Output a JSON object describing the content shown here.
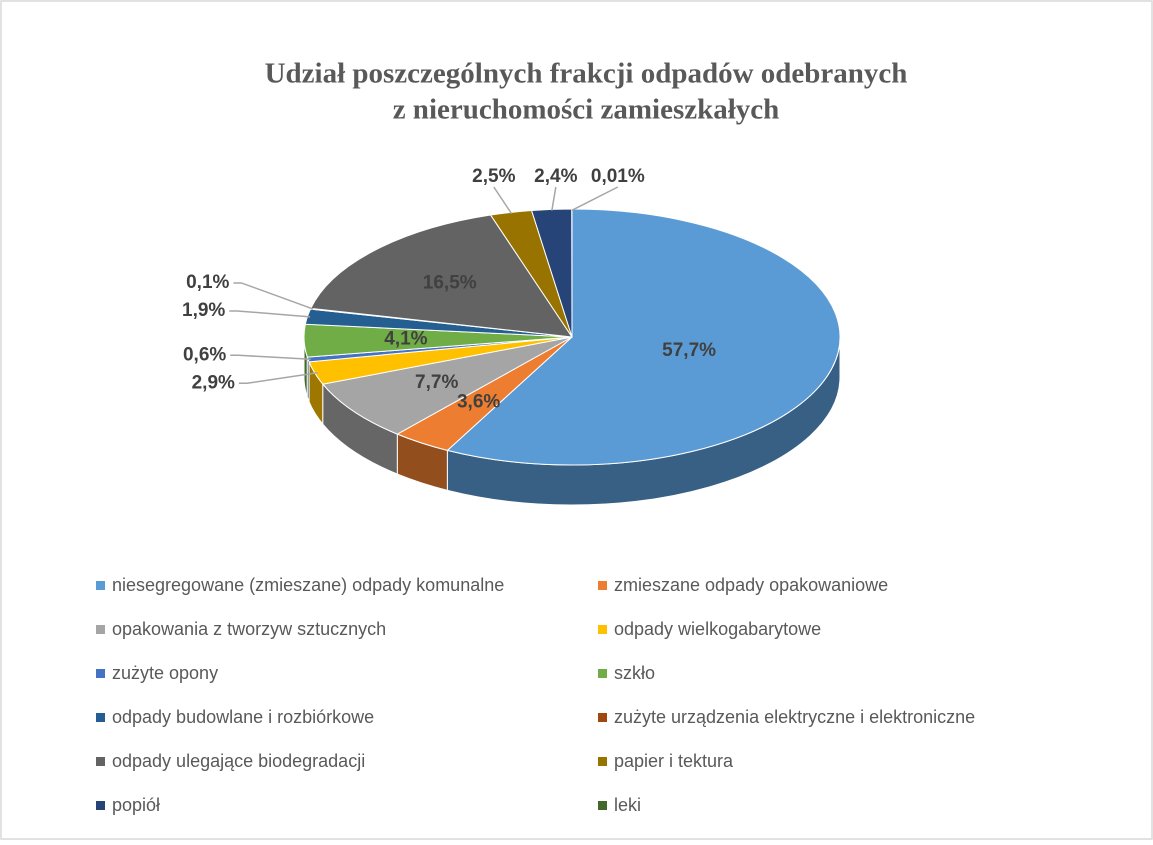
{
  "chart_data": {
    "type": "pie",
    "title": [
      "Udział poszczególnych frakcji odpadów odebranych",
      "z nieruchomości zamieszkałych"
    ],
    "categories": [
      "niesegregowane (zmieszane) odpady komunalne",
      "zmieszane odpady opakowaniowe",
      "opakowania z tworzyw sztucznych",
      "odpady wielkogabarytowe",
      "zużyte opony",
      "szkło",
      "odpady budowlane i rozbiórkowe",
      "zużyte urządzenia elektryczne i elektroniczne",
      "odpady ulegające biodegradacji",
      "papier i tektura",
      "popiół",
      "leki"
    ],
    "values": [
      57.7,
      3.6,
      7.7,
      2.9,
      0.6,
      4.1,
      1.9,
      0.1,
      16.5,
      2.5,
      2.4,
      0.01
    ],
    "value_labels": [
      "57,7%",
      "3,6%",
      "7,7%",
      "2,9%",
      "0,6%",
      "4,1%",
      "1,9%",
      "0,1%",
      "16,5%",
      "2,5%",
      "2,4%",
      "0,01%"
    ],
    "colors": [
      "#5b9bd5",
      "#ed7d31",
      "#a5a5a5",
      "#ffc000",
      "#4472c4",
      "#70ad47",
      "#255e91",
      "#9e480e",
      "#636363",
      "#997300",
      "#264478",
      "#43682b"
    ],
    "legend": "bottom"
  }
}
